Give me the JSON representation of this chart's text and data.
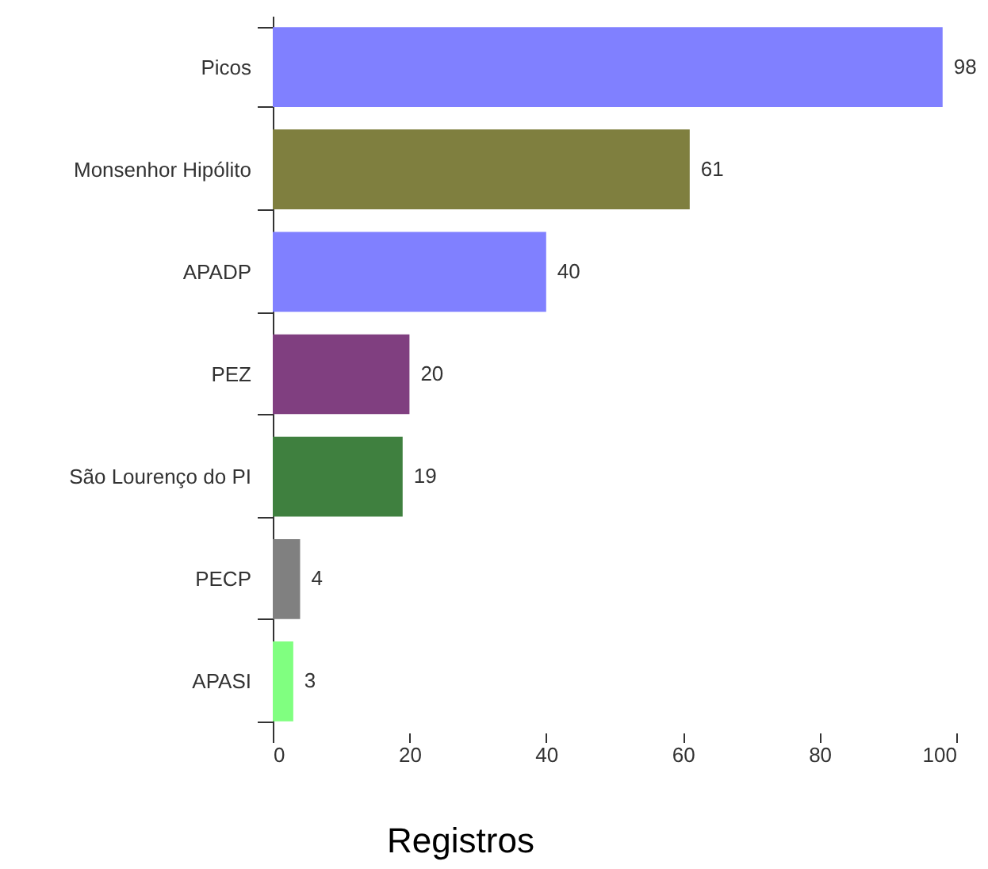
{
  "chart_data": {
    "type": "bar",
    "orientation": "horizontal",
    "xlabel": "Registros",
    "categories": [
      "Picos",
      "Monsenhor Hipólito",
      "APADP",
      "PEZ",
      "São Lourenço do PI",
      "PECP",
      "APASI"
    ],
    "values": [
      98,
      61,
      40,
      20,
      19,
      4,
      3
    ],
    "colors": [
      "#8080ff",
      "#7f7f3f",
      "#8080ff",
      "#803f80",
      "#3f803f",
      "#808080",
      "#80ff80"
    ],
    "xlim": [
      0,
      100
    ],
    "xticks": [
      0,
      20,
      40,
      60,
      80,
      100
    ],
    "data_labels": true,
    "grid": false
  }
}
